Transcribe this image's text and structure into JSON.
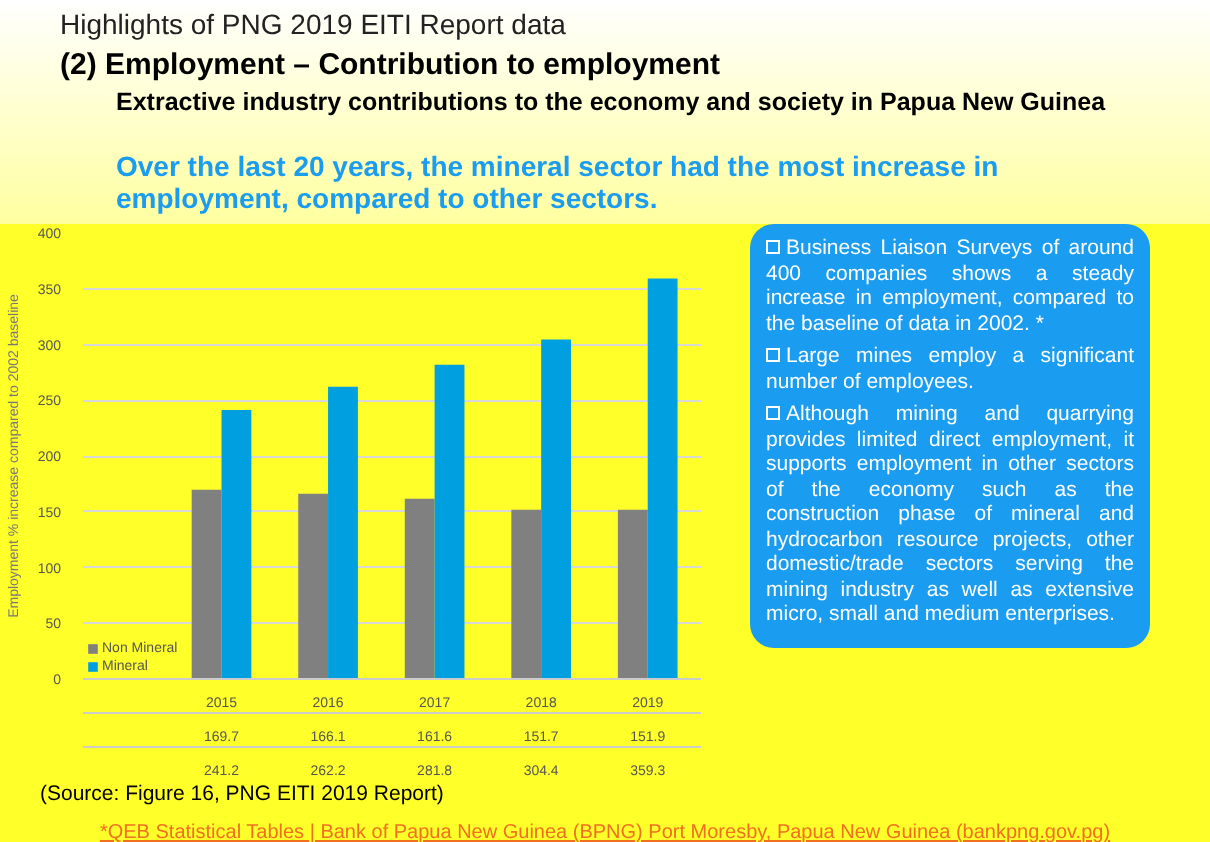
{
  "chart_data": {
    "type": "bar",
    "title": "Highlights of PNG 2019 EITI Report data",
    "subtitle": "(2) Employment – Contribution to employment",
    "ylabel": "Employment % increase compared to 2002 baseline",
    "categories": [
      "2015",
      "2016",
      "2017",
      "2018",
      "2019"
    ],
    "series": [
      {
        "name": "Non Mineral",
        "color": "#808080",
        "values": [
          169.7,
          166.1,
          161.6,
          151.7,
          151.9
        ]
      },
      {
        "name": "Mineral",
        "color": "#009fdf",
        "values": [
          241.2,
          262.2,
          281.8,
          304.4,
          359.3
        ]
      }
    ],
    "ylim": [
      0,
      400
    ],
    "yticks": [
      0,
      50,
      100,
      150,
      200,
      250,
      300,
      350,
      400
    ],
    "grid": "y",
    "legend": "bottom left",
    "data_labels": true,
    "annotations": [
      "Extractive industry contributions to the economy and society in Papua New Guinea",
      "Over the last 20 years, the mineral sector had the most increase in employment, compared to other sectors.",
      "Business Liaison Surveys of around 400 companies shows a steady increase in employment, compared to the baseline of data in 2002. *",
      "Large mines employ a significant number of employees.",
      "Although mining and quarrying provides limited direct employment, it supports employment in other sectors of the economy such as the construction phase of mineral and hydrocarbon resource projects, other domestic/trade sectors serving the mining industry as well as extensive micro, small and medium enterprises.",
      "(Source: Figure 16, PNG EITI 2019 Report)",
      "*QEB Statistical Tables | Bank of Papua New Guinea (BPNG) Port Moresby, Papua New Guinea (bankpng.gov.pg)"
    ]
  }
}
